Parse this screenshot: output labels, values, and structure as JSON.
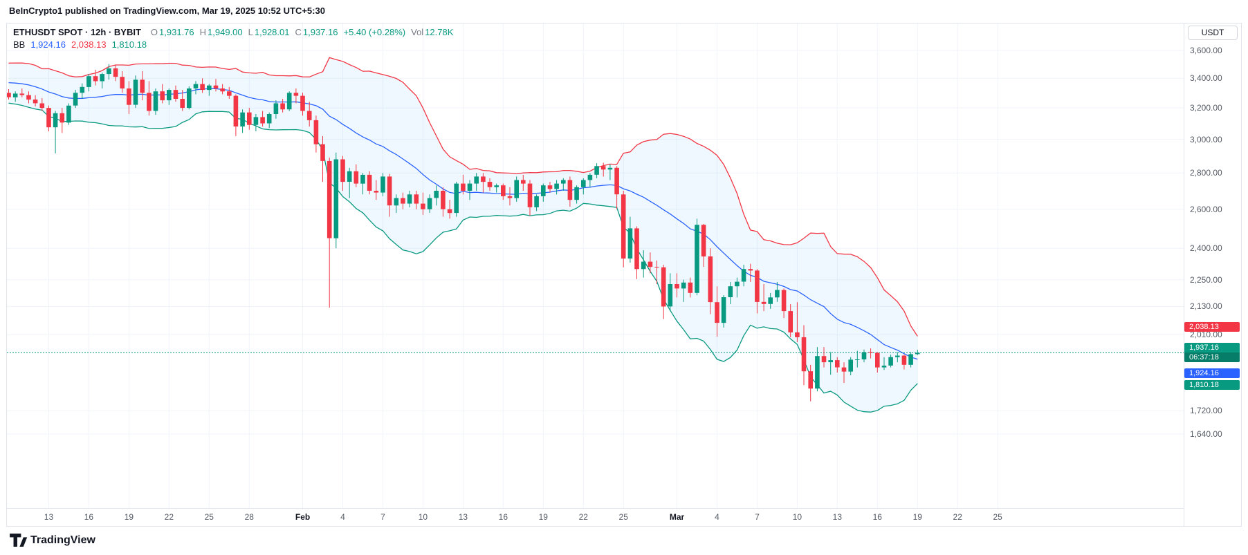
{
  "header": {
    "attribution": "BeInCrypto1 published on TradingView.com, Mar 19, 2025 10:52 UTC+5:30"
  },
  "legend": {
    "symbol": "ETHUSDT SPOT · 12h · BYBIT",
    "ohlc": [
      {
        "label": "O",
        "value": "1,931.76"
      },
      {
        "label": "H",
        "value": "1,949.00"
      },
      {
        "label": "L",
        "value": "1,928.01"
      },
      {
        "label": "C",
        "value": "1,937.16"
      }
    ],
    "change": "+5.40 (+0.28%)",
    "vol_label": "Vol",
    "vol_value": "12.78K",
    "bb_label": "BB",
    "bb_values": [
      {
        "name": "basis",
        "text": "1,924.16"
      },
      {
        "name": "upper",
        "text": "2,038.13"
      },
      {
        "name": "lower",
        "text": "1,810.18"
      }
    ]
  },
  "price_axis": {
    "currency": "USDT",
    "badges": {
      "upper": "2,038.13",
      "current": "1,937.16",
      "countdown": "06:37:18",
      "basis": "1,924.16",
      "lower": "1,810.18"
    }
  },
  "footer": {
    "brand": "TradingView"
  },
  "colors": {
    "up": "#089981",
    "down": "#F23645",
    "bb_upper": "#F23645",
    "bb_basis": "#2962FF",
    "bb_lower": "#089981",
    "bb_fill": "rgba(33,150,243,0.07)",
    "current_line": "#089981",
    "grid": "#F0F3FA",
    "border": "#E0E3EB",
    "axis_text": "#555B66",
    "text": "#131722",
    "muted": "#787B86"
  },
  "chart_data": {
    "type": "candlestick",
    "symbol": "ETHUSDT",
    "market": "SPOT",
    "exchange": "BYBIT",
    "interval": "12h",
    "currency": "USDT",
    "price_scale": "logarithmic",
    "grid": true,
    "start_date": "2025-01-10",
    "bars_per_day": 2,
    "current": {
      "open": 1931.76,
      "high": 1949.0,
      "low": 1928.01,
      "close": 1937.16,
      "change": "+5.40 (+0.28%)",
      "change_pct": 0.28,
      "volume": "12.78K",
      "bar_time_left": "06:37:18"
    },
    "indicator": {
      "name": "BB",
      "length": 20,
      "stdev_mult": 2,
      "basis": 1924.16,
      "upper": 2038.13,
      "lower": 1810.18
    },
    "price_ticks": [
      3600,
      3400,
      3200,
      3000,
      2800,
      2600,
      2400,
      2250,
      2130,
      2010,
      1720,
      1640
    ],
    "x_ticks": [
      {
        "i": 6,
        "label": "13"
      },
      {
        "i": 12,
        "label": "16"
      },
      {
        "i": 18,
        "label": "19"
      },
      {
        "i": 24,
        "label": "22"
      },
      {
        "i": 30,
        "label": "25"
      },
      {
        "i": 36,
        "label": "28"
      },
      {
        "i": 44,
        "label": "Feb",
        "bold": true
      },
      {
        "i": 50,
        "label": "4"
      },
      {
        "i": 56,
        "label": "7"
      },
      {
        "i": 62,
        "label": "10"
      },
      {
        "i": 68,
        "label": "13"
      },
      {
        "i": 74,
        "label": "16"
      },
      {
        "i": 80,
        "label": "19"
      },
      {
        "i": 86,
        "label": "22"
      },
      {
        "i": 92,
        "label": "25"
      },
      {
        "i": 100,
        "label": "Mar",
        "bold": true
      },
      {
        "i": 106,
        "label": "4"
      },
      {
        "i": 112,
        "label": "7"
      },
      {
        "i": 118,
        "label": "10"
      },
      {
        "i": 124,
        "label": "13"
      },
      {
        "i": 130,
        "label": "16"
      },
      {
        "i": 136,
        "label": "19"
      },
      {
        "i": 142,
        "label": "22"
      },
      {
        "i": 148,
        "label": "25"
      }
    ],
    "bb_preroll_closes": [
      3350,
      3380,
      3420,
      3470,
      3510,
      3480,
      3440,
      3450,
      3410,
      3360,
      3320,
      3340,
      3310,
      3330,
      3290,
      3320,
      3330,
      3300,
      3310
    ],
    "candles": [
      [
        3300,
        3325,
        3255,
        3270
      ],
      [
        3270,
        3310,
        3240,
        3295
      ],
      [
        3295,
        3330,
        3270,
        3285
      ],
      [
        3285,
        3310,
        3230,
        3255
      ],
      [
        3255,
        3285,
        3210,
        3230
      ],
      [
        3230,
        3265,
        3180,
        3200
      ],
      [
        3200,
        3215,
        3050,
        3075
      ],
      [
        3075,
        3180,
        2915,
        3165
      ],
      [
        3165,
        3200,
        3040,
        3105
      ],
      [
        3105,
        3230,
        3090,
        3215
      ],
      [
        3215,
        3320,
        3200,
        3300
      ],
      [
        3300,
        3365,
        3260,
        3340
      ],
      [
        3340,
        3430,
        3310,
        3415
      ],
      [
        3415,
        3460,
        3350,
        3380
      ],
      [
        3380,
        3440,
        3330,
        3430
      ],
      [
        3430,
        3500,
        3390,
        3470
      ],
      [
        3470,
        3495,
        3380,
        3410
      ],
      [
        3410,
        3450,
        3300,
        3330
      ],
      [
        3330,
        3380,
        3160,
        3220
      ],
      [
        3220,
        3420,
        3200,
        3390
      ],
      [
        3390,
        3450,
        3250,
        3300
      ],
      [
        3300,
        3380,
        3150,
        3180
      ],
      [
        3180,
        3330,
        3155,
        3310
      ],
      [
        3310,
        3360,
        3230,
        3250
      ],
      [
        3250,
        3330,
        3220,
        3320
      ],
      [
        3320,
        3350,
        3240,
        3260
      ],
      [
        3260,
        3320,
        3180,
        3200
      ],
      [
        3200,
        3345,
        3190,
        3330
      ],
      [
        3330,
        3380,
        3290,
        3360
      ],
      [
        3360,
        3400,
        3300,
        3320
      ],
      [
        3320,
        3360,
        3280,
        3350
      ],
      [
        3350,
        3395,
        3310,
        3330
      ],
      [
        3330,
        3360,
        3290,
        3310
      ],
      [
        3310,
        3340,
        3260,
        3280
      ],
      [
        3280,
        3290,
        3020,
        3080
      ],
      [
        3080,
        3190,
        3040,
        3170
      ],
      [
        3170,
        3200,
        3060,
        3090
      ],
      [
        3090,
        3160,
        3050,
        3140
      ],
      [
        3140,
        3180,
        3080,
        3100
      ],
      [
        3100,
        3170,
        3070,
        3160
      ],
      [
        3160,
        3250,
        3130,
        3230
      ],
      [
        3230,
        3260,
        3170,
        3190
      ],
      [
        3190,
        3310,
        3180,
        3300
      ],
      [
        3300,
        3330,
        3230,
        3280
      ],
      [
        3280,
        3300,
        3150,
        3180
      ],
      [
        3180,
        3240,
        3080,
        3120
      ],
      [
        3120,
        3150,
        2920,
        2970
      ],
      [
        2970,
        3020,
        2750,
        2870
      ],
      [
        2870,
        2890,
        2125,
        2450
      ],
      [
        2450,
        2920,
        2400,
        2880
      ],
      [
        2880,
        2900,
        2700,
        2750
      ],
      [
        2750,
        2830,
        2660,
        2810
      ],
      [
        2810,
        2850,
        2720,
        2740
      ],
      [
        2740,
        2800,
        2680,
        2790
      ],
      [
        2790,
        2810,
        2680,
        2700
      ],
      [
        2700,
        2760,
        2650,
        2690
      ],
      [
        2690,
        2800,
        2670,
        2780
      ],
      [
        2780,
        2795,
        2560,
        2620
      ],
      [
        2620,
        2680,
        2580,
        2660
      ],
      [
        2660,
        2690,
        2600,
        2630
      ],
      [
        2630,
        2700,
        2610,
        2680
      ],
      [
        2680,
        2700,
        2600,
        2630
      ],
      [
        2630,
        2690,
        2570,
        2600
      ],
      [
        2600,
        2680,
        2580,
        2660
      ],
      [
        2660,
        2730,
        2620,
        2700
      ],
      [
        2700,
        2720,
        2560,
        2600
      ],
      [
        2600,
        2650,
        2550,
        2580
      ],
      [
        2580,
        2750,
        2560,
        2740
      ],
      [
        2740,
        2790,
        2680,
        2700
      ],
      [
        2700,
        2760,
        2650,
        2740
      ],
      [
        2740,
        2800,
        2700,
        2780
      ],
      [
        2780,
        2800,
        2690,
        2750
      ],
      [
        2750,
        2770,
        2700,
        2720
      ],
      [
        2720,
        2740,
        2690,
        2730
      ],
      [
        2730,
        2740,
        2650,
        2670
      ],
      [
        2670,
        2720,
        2620,
        2660
      ],
      [
        2660,
        2780,
        2640,
        2760
      ],
      [
        2760,
        2790,
        2700,
        2740
      ],
      [
        2740,
        2760,
        2565,
        2610
      ],
      [
        2610,
        2680,
        2590,
        2670
      ],
      [
        2670,
        2740,
        2640,
        2730
      ],
      [
        2730,
        2750,
        2690,
        2710
      ],
      [
        2710,
        2760,
        2680,
        2740
      ],
      [
        2740,
        2770,
        2700,
        2760
      ],
      [
        2760,
        2780,
        2613,
        2650
      ],
      [
        2650,
        2730,
        2630,
        2720
      ],
      [
        2720,
        2770,
        2680,
        2760
      ],
      [
        2760,
        2800,
        2720,
        2790
      ],
      [
        2790,
        2857,
        2770,
        2840
      ],
      [
        2840,
        2860,
        2780,
        2820
      ],
      [
        2820,
        2850,
        2760,
        2830
      ],
      [
        2830,
        2840,
        2600,
        2680
      ],
      [
        2680,
        2700,
        2308,
        2350
      ],
      [
        2350,
        2560,
        2330,
        2500
      ],
      [
        2500,
        2510,
        2253,
        2300
      ],
      [
        2300,
        2390,
        2260,
        2335
      ],
      [
        2335,
        2380,
        2280,
        2310
      ],
      [
        2310,
        2340,
        2230,
        2308
      ],
      [
        2308,
        2320,
        2076,
        2130
      ],
      [
        2130,
        2280,
        2110,
        2230
      ],
      [
        2230,
        2280,
        2170,
        2210
      ],
      [
        2210,
        2250,
        2150,
        2237
      ],
      [
        2237,
        2260,
        2170,
        2190
      ],
      [
        2190,
        2550,
        2180,
        2518
      ],
      [
        2518,
        2523,
        2310,
        2360
      ],
      [
        2360,
        2400,
        2097,
        2149
      ],
      [
        2149,
        2220,
        2002,
        2060
      ],
      [
        2060,
        2180,
        2040,
        2171
      ],
      [
        2171,
        2240,
        2140,
        2220
      ],
      [
        2220,
        2260,
        2170,
        2241
      ],
      [
        2241,
        2320,
        2220,
        2300
      ],
      [
        2300,
        2325,
        2240,
        2293
      ],
      [
        2293,
        2300,
        2100,
        2150
      ],
      [
        2150,
        2230,
        2110,
        2141
      ],
      [
        2141,
        2190,
        2120,
        2170
      ],
      [
        2170,
        2240,
        2150,
        2203
      ],
      [
        2203,
        2210,
        2080,
        2110
      ],
      [
        2110,
        2140,
        2000,
        2020
      ],
      [
        2020,
        2149,
        1980,
        2000
      ],
      [
        2000,
        2050,
        1813,
        1865
      ],
      [
        1865,
        1890,
        1754,
        1800
      ],
      [
        1800,
        1960,
        1790,
        1924
      ],
      [
        1924,
        1960,
        1880,
        1900
      ],
      [
        1900,
        1940,
        1852,
        1908
      ],
      [
        1908,
        1920,
        1860,
        1880
      ],
      [
        1880,
        1900,
        1821,
        1864
      ],
      [
        1864,
        1920,
        1850,
        1910
      ],
      [
        1910,
        1945,
        1880,
        1911
      ],
      [
        1911,
        1950,
        1900,
        1940
      ],
      [
        1940,
        1955,
        1915,
        1937
      ],
      [
        1937,
        1940,
        1860,
        1880
      ],
      [
        1880,
        1920,
        1870,
        1887
      ],
      [
        1887,
        1930,
        1880,
        1920
      ],
      [
        1920,
        1940,
        1900,
        1926
      ],
      [
        1926,
        1930,
        1872,
        1890
      ],
      [
        1890,
        1940,
        1880,
        1931.76
      ],
      [
        1931.76,
        1949,
        1928.01,
        1937.16
      ]
    ]
  }
}
